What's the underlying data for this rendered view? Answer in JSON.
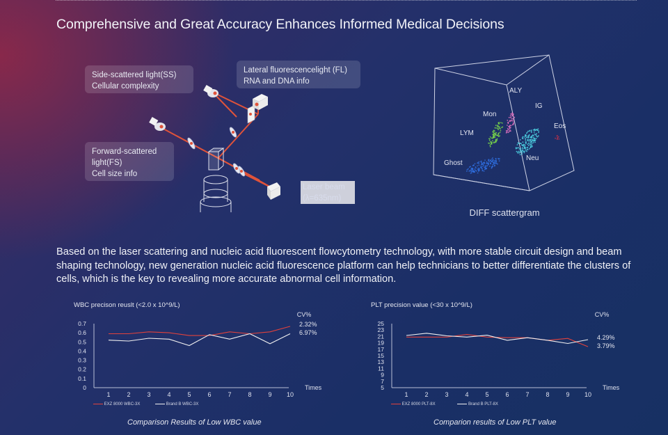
{
  "title": "Comprehensive and Great Accuracy Enhances Informed Medical Decisions",
  "callouts": {
    "ss": {
      "line1": "Side-scattered light(SS)",
      "line2": "Cellular complexity"
    },
    "fl": {
      "line1": "Lateral fluorescencelight (FL)",
      "line2": "RNA and DNA info"
    },
    "fs": {
      "line1": "Forward-scattered",
      "line2": "light(FS)",
      "line3": "Cell size info"
    }
  },
  "laser_label": {
    "line1": "Laser beam",
    "line2": "(λ=635nm)"
  },
  "scattergram": {
    "caption": "DIFF scattergram",
    "labels": {
      "aly": "ALY",
      "ig": "IG",
      "mon": "Mon",
      "eos": "Eos",
      "lym": "LYM",
      "neu": "Neu",
      "ghost": "Ghost"
    },
    "colors": {
      "ghost": "#2f6fe0",
      "lym": "#7ad94a",
      "mon": "#e070c0",
      "neu": "#4fd8e8",
      "eos": "#c0304a"
    }
  },
  "paragraph": "Based on the laser scattering and nucleic acid fluorescent flowcytometry technology, with more stable circuit design and beam shaping technology, new generation nucleic acid fluorescence platform can help technicians to better differentiate the clusters of cells, which is the key to revealing more accurate abnormal cell information.",
  "chart_data": [
    {
      "type": "line",
      "title": "WBC precison reuslt (<2.0 x 10^9/L)",
      "xlabel": "Times",
      "ylabel": "CV%",
      "x": [
        1,
        2,
        3,
        4,
        5,
        6,
        7,
        8,
        9,
        10
      ],
      "yticks": [
        "0.7",
        "0.6",
        "0.5",
        "0.4",
        "0.3",
        "0.2",
        "0.1",
        "0"
      ],
      "xticks": [
        "1",
        "2",
        "3",
        "4",
        "5",
        "6",
        "7",
        "8",
        "9",
        "10"
      ],
      "ylim": [
        0,
        0.7
      ],
      "series": [
        {
          "name": "EXZ 8000 WBC-3X",
          "color": "#e2423c",
          "end_label": "2.32%",
          "values": [
            0.59,
            0.59,
            0.61,
            0.6,
            0.57,
            0.57,
            0.61,
            0.59,
            0.61,
            0.67
          ]
        },
        {
          "name": "Brand B WBC-3X",
          "color": "#f2f2f2",
          "end_label": "6.97%",
          "values": [
            0.52,
            0.51,
            0.54,
            0.53,
            0.46,
            0.58,
            0.53,
            0.59,
            0.48,
            0.59
          ]
        }
      ],
      "caption": "Comparison Results of Low WBC value"
    },
    {
      "type": "line",
      "title": "PLT precision value (<30 x 10^9/L)",
      "xlabel": "Times",
      "ylabel": "CV%",
      "x": [
        1,
        2,
        3,
        4,
        5,
        6,
        7,
        8,
        9,
        10
      ],
      "yticks": [
        "25",
        "23",
        "21",
        "19",
        "17",
        "15",
        "13",
        "11",
        "9",
        "7",
        "5"
      ],
      "xticks": [
        "1",
        "2",
        "3",
        "4",
        "5",
        "6",
        "7",
        "8",
        "9",
        "10"
      ],
      "ylim": [
        5,
        25
      ],
      "series": [
        {
          "name": "EXZ 8000 PLT-8X",
          "color": "#e2423c",
          "end_label": "3.79%",
          "values": [
            20.8,
            20.8,
            20.8,
            21.6,
            20.8,
            20.6,
            20.6,
            19.8,
            20.4,
            17.8
          ]
        },
        {
          "name": "Brand B PLT-8X",
          "color": "#f2f2f2",
          "end_label": "4.29%",
          "values": [
            21.3,
            22.0,
            21.2,
            20.8,
            21.4,
            19.8,
            20.6,
            19.8,
            18.8,
            20.0
          ]
        }
      ],
      "caption": "Comparion results of Low PLT value"
    }
  ]
}
